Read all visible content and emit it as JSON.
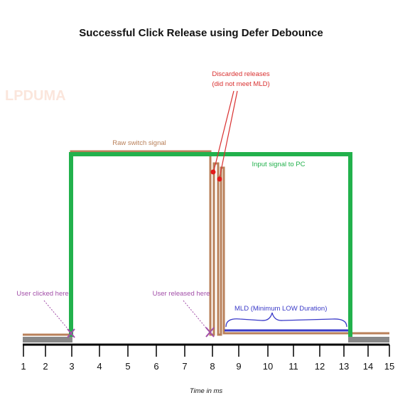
{
  "title": "Successful Click Release using Defer Debounce",
  "watermark": "LPDUMA",
  "x_axis": {
    "label": "Time in ms",
    "ticks": [
      "1",
      "2",
      "3",
      "4",
      "5",
      "6",
      "7",
      "8",
      "9",
      "10",
      "11",
      "12",
      "13",
      "14",
      "15"
    ]
  },
  "annotations": {
    "raw_signal": "Raw switch signal",
    "input_signal": "Input signal to PC",
    "discarded_line1": "Discarded releases",
    "discarded_line2": "(did not meet MLD)",
    "user_clicked": "User clicked here",
    "user_released": "User released here",
    "mld": "MLD (Minimum LOW Duration)"
  },
  "colors": {
    "raw_signal": "#b9805a",
    "input_signal": "#22b14c",
    "discarded": "#d93030",
    "user_event": "#a24ea8",
    "mld": "#3a3ac8",
    "axis": "#000000",
    "baseline": "#888888"
  }
}
